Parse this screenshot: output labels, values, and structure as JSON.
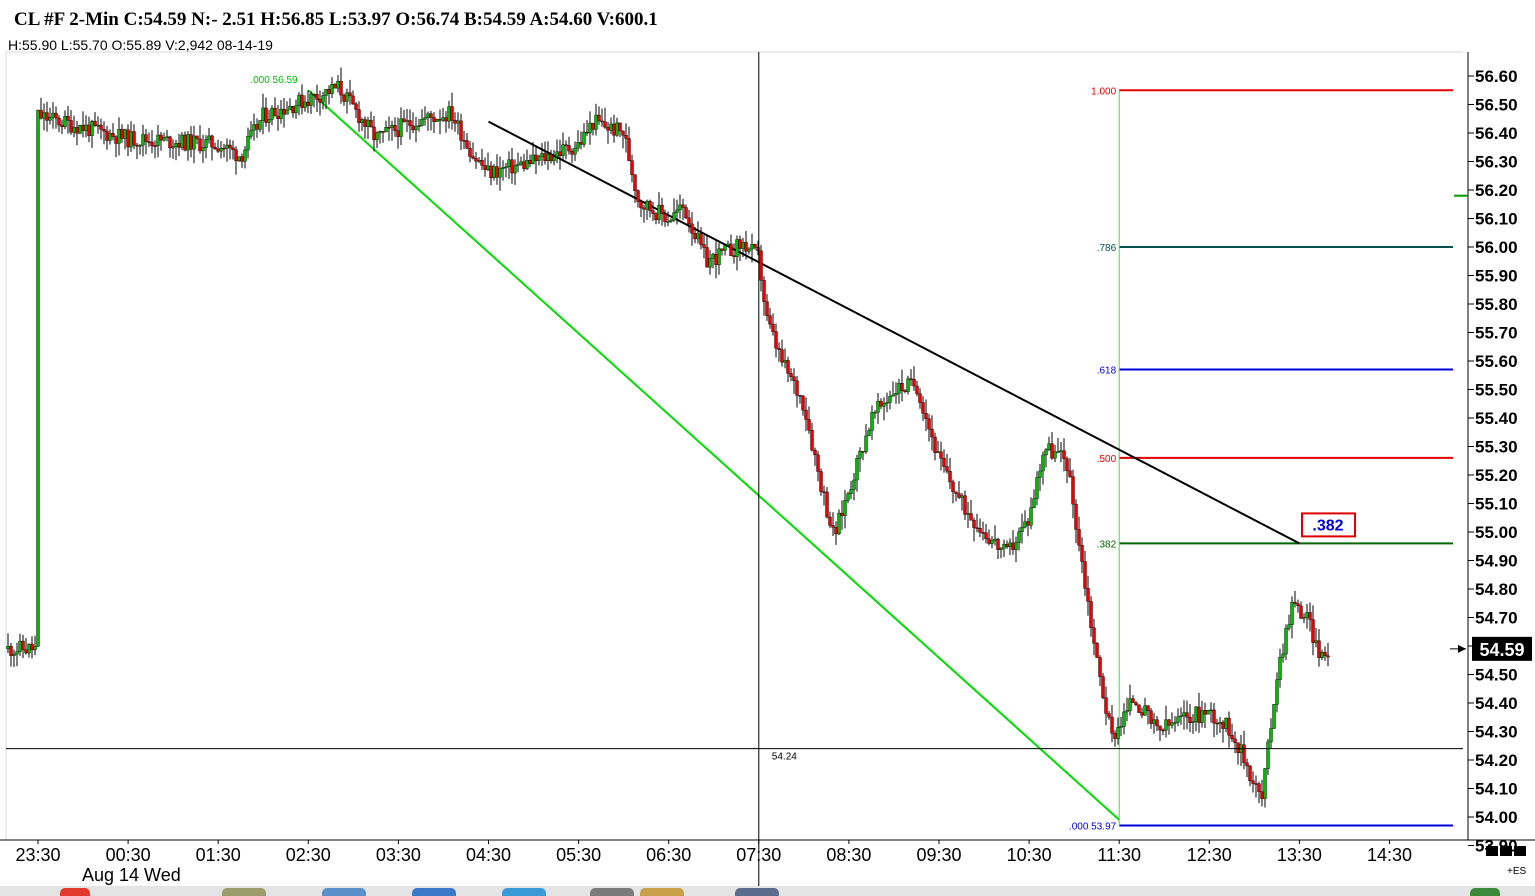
{
  "header": {
    "title": "CL #F 2-Min C:54.59 N:- 2.51 H:56.85 L:53.97 O:56.74 B:54.59 A:54.60 V:600.1",
    "subtitle": "H:55.90  L:55.70  O:55.89  V:2,942  08-14-19"
  },
  "footer": {
    "date_label": "Aug 14 Wed",
    "corner_label": "+ES"
  },
  "colors": {
    "up_candle": "#00bb00",
    "down_candle": "#ee0000",
    "fib_100": "#e00000",
    "fib_786": "#005050",
    "fib_618": "#0000dd",
    "fib_500": "#e00000",
    "fib_382": "#006600",
    "fib_000": "#0000dd",
    "fib_vertical": "#44dd44",
    "channel_line": "#00dd00",
    "trend_line": "#000000",
    "price_badge": "#e00000"
  },
  "chart_data": {
    "type": "candlestick",
    "instrument": "CL #F",
    "interval": "2-Min",
    "ylim": [
      53.87,
      56.65
    ],
    "y_ticks": [
      "56.60",
      "56.50",
      "56.40",
      "56.30",
      "56.20",
      "56.10",
      "56.00",
      "55.90",
      "55.80",
      "55.70",
      "55.60",
      "55.50",
      "55.40",
      "55.30",
      "55.20",
      "55.10",
      "55.00",
      "54.90",
      "54.80",
      "54.70",
      "54.60",
      "54.50",
      "54.40",
      "54.30",
      "54.20",
      "54.10",
      "54.00",
      "53.90"
    ],
    "x_ticks": [
      "23:30",
      "00:30",
      "01:30",
      "02:30",
      "03:30",
      "04:30",
      "05:30",
      "06:30",
      "07:30",
      "08:30",
      "09:30",
      "10:30",
      "11:30",
      "12:30",
      "13:30",
      "14:30"
    ],
    "last_price": "54.59",
    "last_price_value": 54.59,
    "crosshair": {
      "price_label": "54.24",
      "price": 54.24,
      "time": "07:30"
    },
    "fibonacci": {
      "levels": [
        {
          "label": "1.000",
          "price": 56.55,
          "color_key": "fib_100"
        },
        {
          "label": ".786",
          "price": 56.0,
          "color_key": "fib_786"
        },
        {
          "label": ".618",
          "price": 55.57,
          "color_key": "fib_618"
        },
        {
          "label": ".500",
          "price": 55.26,
          "color_key": "fib_500"
        },
        {
          "label": ".382",
          "price": 54.96,
          "color_key": "fib_382"
        },
        {
          "label": ".000  53.97",
          "price": 53.97,
          "color_key": "fib_000"
        }
      ],
      "start_time": "11:30",
      "highlight_label": ".382"
    },
    "annotations": {
      "swing_high_label": ".000  56.59",
      "swing_high_price": 56.59,
      "swing_high_time": "02:30"
    },
    "trend_lines": [
      {
        "name": "descending-resistance",
        "from": {
          "time": "04:30",
          "price": 56.44
        },
        "to": {
          "time": "13:30",
          "price": 54.96
        }
      },
      {
        "name": "channel-support",
        "from": {
          "time": "02:30",
          "price": 56.55
        },
        "to": {
          "time": "11:30",
          "price": 53.99
        }
      }
    ],
    "path_points": [
      {
        "time": "23:30",
        "price": 56.46
      },
      {
        "time": "00:30",
        "price": 56.38
      },
      {
        "time": "01:30",
        "price": 56.36
      },
      {
        "time": "01:45",
        "price": 56.32
      },
      {
        "time": "02:00",
        "price": 56.46
      },
      {
        "time": "02:30",
        "price": 56.52
      },
      {
        "time": "02:50",
        "price": 56.56
      },
      {
        "time": "03:15",
        "price": 56.38
      },
      {
        "time": "03:40",
        "price": 56.44
      },
      {
        "time": "04:05",
        "price": 56.47
      },
      {
        "time": "04:20",
        "price": 56.32
      },
      {
        "time": "04:30",
        "price": 56.26
      },
      {
        "time": "05:00",
        "price": 56.3
      },
      {
        "time": "05:30",
        "price": 56.36
      },
      {
        "time": "05:40",
        "price": 56.44
      },
      {
        "time": "06:00",
        "price": 56.4
      },
      {
        "time": "06:10",
        "price": 56.16
      },
      {
        "time": "06:30",
        "price": 56.1
      },
      {
        "time": "06:40",
        "price": 56.14
      },
      {
        "time": "06:55",
        "price": 55.95
      },
      {
        "time": "07:20",
        "price": 56.01
      },
      {
        "time": "07:30",
        "price": 55.96
      },
      {
        "time": "07:35",
        "price": 55.75
      },
      {
        "time": "07:45",
        "price": 55.6
      },
      {
        "time": "08:00",
        "price": 55.45
      },
      {
        "time": "08:10",
        "price": 55.2
      },
      {
        "time": "08:20",
        "price": 54.98
      },
      {
        "time": "08:30",
        "price": 55.15
      },
      {
        "time": "08:45",
        "price": 55.4
      },
      {
        "time": "09:00",
        "price": 55.5
      },
      {
        "time": "09:15",
        "price": 55.52
      },
      {
        "time": "09:30",
        "price": 55.25
      },
      {
        "time": "09:45",
        "price": 55.1
      },
      {
        "time": "10:00",
        "price": 55.0
      },
      {
        "time": "10:15",
        "price": 54.92
      },
      {
        "time": "10:30",
        "price": 55.05
      },
      {
        "time": "10:40",
        "price": 55.3
      },
      {
        "time": "10:55",
        "price": 55.25
      },
      {
        "time": "11:05",
        "price": 54.9
      },
      {
        "time": "11:15",
        "price": 54.55
      },
      {
        "time": "11:25",
        "price": 54.28
      },
      {
        "time": "11:40",
        "price": 54.42
      },
      {
        "time": "11:55",
        "price": 54.3
      },
      {
        "time": "12:15",
        "price": 54.35
      },
      {
        "time": "12:30",
        "price": 54.37
      },
      {
        "time": "12:45",
        "price": 54.3
      },
      {
        "time": "12:55",
        "price": 54.18
      },
      {
        "time": "13:05",
        "price": 54.06
      },
      {
        "time": "13:15",
        "price": 54.5
      },
      {
        "time": "13:25",
        "price": 54.75
      },
      {
        "time": "13:35",
        "price": 54.7
      },
      {
        "time": "13:45",
        "price": 54.55
      },
      {
        "time": "13:50",
        "price": 54.59
      }
    ],
    "title": "CL #F 2-Min"
  }
}
